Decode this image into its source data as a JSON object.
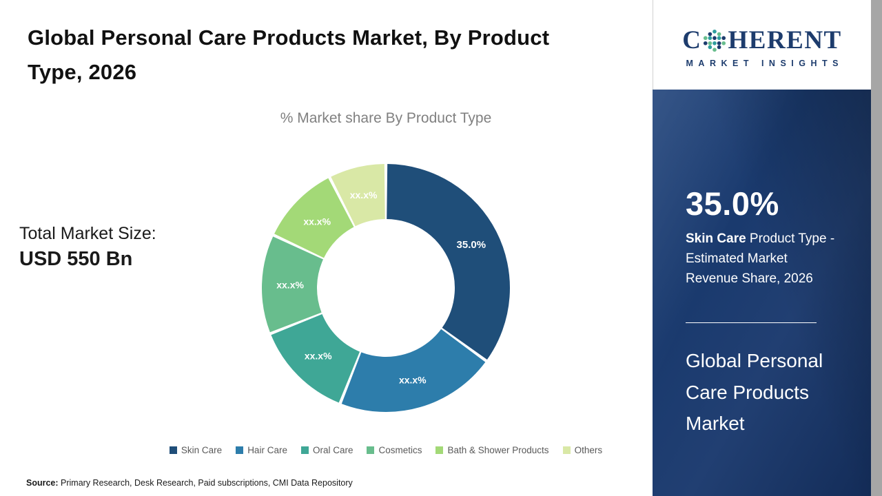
{
  "page": {
    "title": "Global Personal Care Products Market, By Product Type, 2026"
  },
  "chart_data": {
    "type": "pie",
    "subtype": "donut",
    "title": "% Market share By Product Type",
    "legend_position": "bottom",
    "note": "Only the Skin Care share (35.0%) is disclosed; other slices are labeled xx.x% and their values are estimated from arc angles.",
    "slices": [
      {
        "category": "Skin Care",
        "label": "35.0%",
        "value": 35.0,
        "color": "#1f4e79"
      },
      {
        "category": "Hair Care",
        "label": "xx.x%",
        "value": 21.0,
        "color": "#2d7dab"
      },
      {
        "category": "Oral Care",
        "label": "xx.x%",
        "value": 13.0,
        "color": "#3fa796"
      },
      {
        "category": "Cosmetics",
        "label": "xx.x%",
        "value": 13.0,
        "color": "#68bd8d"
      },
      {
        "category": "Bath & Shower Products",
        "label": "xx.x%",
        "value": 10.5,
        "color": "#a3d977"
      },
      {
        "category": "Others",
        "label": "xx.x%",
        "value": 7.5,
        "color": "#d9e8a6"
      }
    ]
  },
  "total_market": {
    "label": "Total Market Size:",
    "value": "USD 550 Bn"
  },
  "source": {
    "prefix": "Source:",
    "text": " Primary Research, Desk Research, Paid subscriptions, CMI Data Repository"
  },
  "sidebar": {
    "logo": {
      "part1": "C",
      "part2": "HERENT",
      "subtitle": "MARKET INSIGHTS"
    },
    "highlight_value": "35.0%",
    "highlight_label_bold": "Skin Care",
    "highlight_label_rest": " Product Type - Estimated Market Revenue Share, 2026",
    "report_title": "Global Personal Care Products Market"
  },
  "theme": {
    "sidebar_navy": "#1b3a6b",
    "logo_navy": "#1d3c6d",
    "right_strip_gray": "#a6a6a6"
  }
}
